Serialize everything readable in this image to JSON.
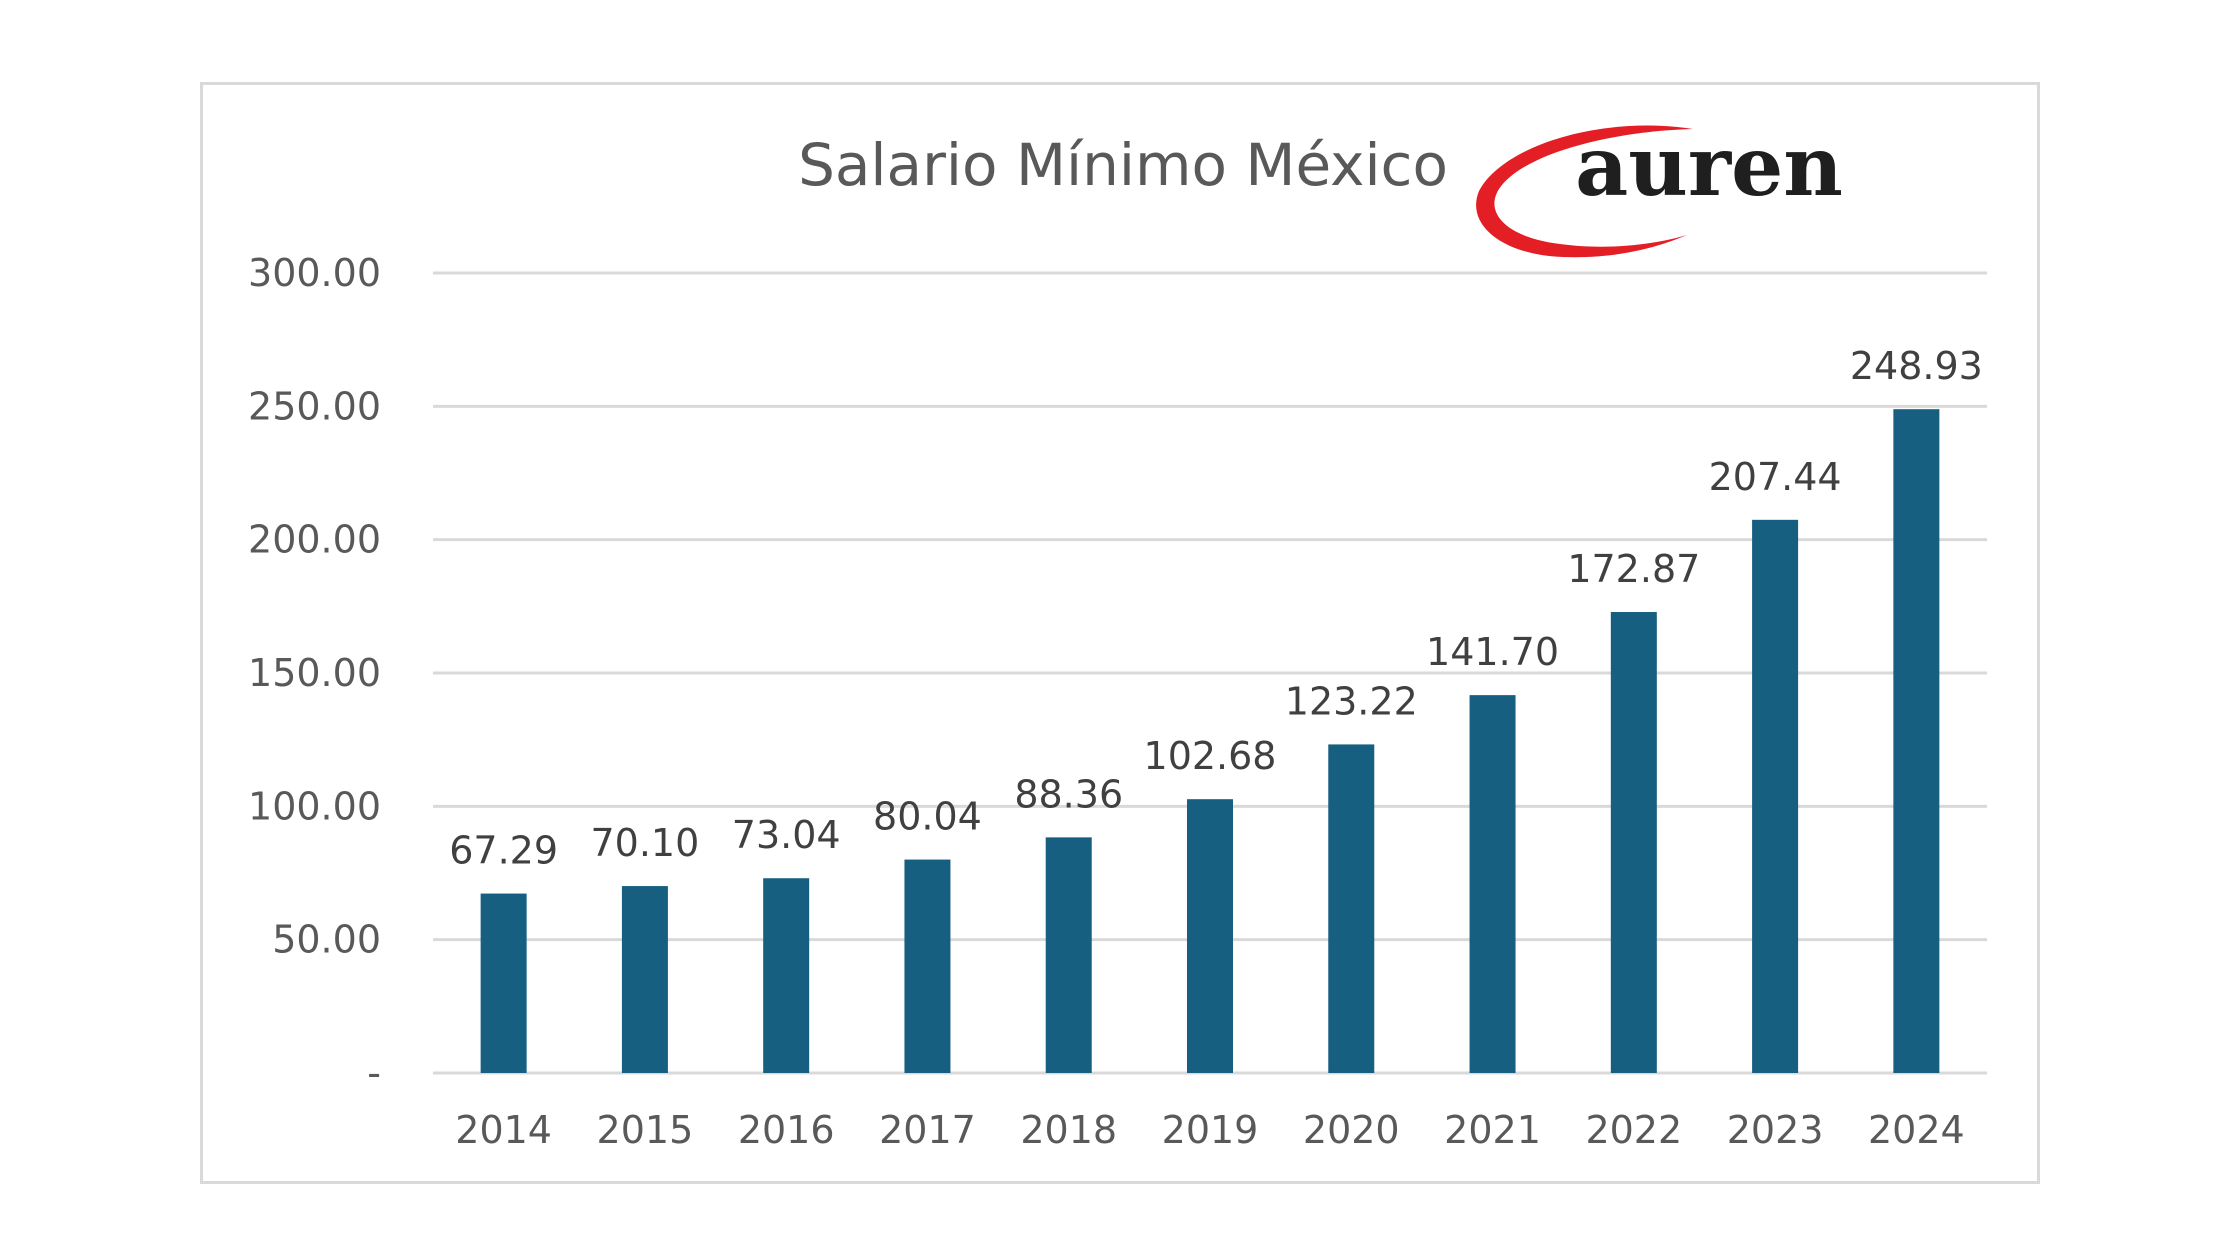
{
  "logo": {
    "text": "auren",
    "swoosh_color": "#e31e24",
    "text_color": "#1f1f1f"
  },
  "colors": {
    "bar": "#175f80",
    "grid": "#d9d9d9",
    "frame": "#d9d9d9",
    "text": "#595959"
  },
  "chart_data": {
    "type": "bar",
    "title": "Salario Mínimo México",
    "categories": [
      "2014",
      "2015",
      "2016",
      "2017",
      "2018",
      "2019",
      "2020",
      "2021",
      "2022",
      "2023",
      "2024"
    ],
    "values": [
      67.29,
      70.1,
      73.04,
      80.04,
      88.36,
      102.68,
      123.22,
      141.7,
      172.87,
      207.44,
      248.93
    ],
    "value_labels": [
      "67.29",
      "70.10",
      "73.04",
      "80.04",
      "88.36",
      "102.68",
      "123.22",
      "141.70",
      "172.87",
      "207.44",
      "248.93"
    ],
    "yticks": [
      0,
      50,
      100,
      150,
      200,
      250,
      300
    ],
    "ytick_labels": [
      "-",
      "50.00",
      "100.00",
      "150.00",
      "200.00",
      "250.00",
      "300.00"
    ],
    "ylim": [
      0,
      300
    ],
    "grid": true,
    "legend": "none",
    "xlabel": "",
    "ylabel": ""
  }
}
